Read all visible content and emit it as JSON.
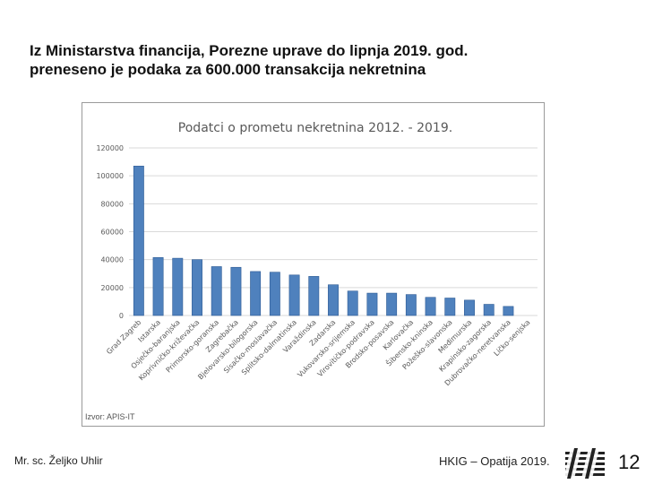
{
  "slide": {
    "title_line1": "Iz Ministarstva financija, Porezne uprave do lipnja 2019. god.",
    "title_line2": "preneseno je podaka za 600.000 transakcija nekretnina",
    "source": "Izvor: APIS-IT",
    "footer_author": "Mr. sc. Željko Uhlir",
    "footer_event": "HKIG – Opatija 2019.",
    "page_number": "12"
  },
  "colors": {
    "bar": "#4f81bd",
    "bar_dark": "#2c5a94",
    "grid": "#d9d9d9",
    "title": "#595959",
    "tick": "#595959"
  },
  "chart_data": {
    "type": "bar",
    "title": "Podatci o prometu nekretnina 2012. - 2019.",
    "xlabel": "",
    "ylabel": "",
    "ylim": [
      0,
      120000
    ],
    "yticks": [
      0,
      20000,
      40000,
      60000,
      80000,
      100000,
      120000
    ],
    "grid": true,
    "categories": [
      "Grad Zagreb",
      "Istarska",
      "Osječko-baranjska",
      "Koprivničko-križevačka",
      "Primorsko-goranska",
      "Zagrebačka",
      "Bjelovarsko-bilogorska",
      "Sisačko-moslavačka",
      "Splitsko-dalmatinska",
      "Varaždinska",
      "Zadarska",
      "Vukovarsko-srijemska",
      "Virovitičko-podravska",
      "Brodsko-posavska",
      "Karlovačka",
      "Šibensko-kninska",
      "Požeško-slavonska",
      "Međimurska",
      "Krapinsko-zagorska",
      "Dubrovačko-neretvanska",
      "Ličko-senjska"
    ],
    "values": [
      107000,
      41500,
      41000,
      40000,
      35000,
      34500,
      31500,
      31000,
      29000,
      28000,
      22000,
      17500,
      16000,
      16000,
      15000,
      13000,
      12500,
      11000,
      8000,
      6500,
      0
    ]
  }
}
